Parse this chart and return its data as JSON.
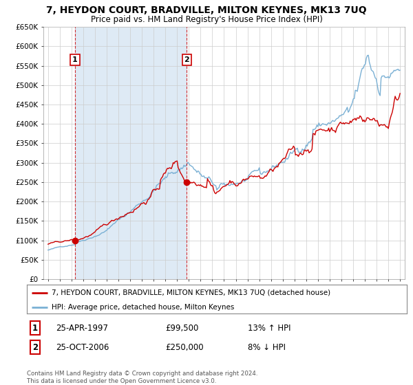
{
  "title": "7, HEYDON COURT, BRADVILLE, MILTON KEYNES, MK13 7UQ",
  "subtitle": "Price paid vs. HM Land Registry's House Price Index (HPI)",
  "legend_line1": "7, HEYDON COURT, BRADVILLE, MILTON KEYNES, MK13 7UQ (detached house)",
  "legend_line2": "HPI: Average price, detached house, Milton Keynes",
  "footer": "Contains HM Land Registry data © Crown copyright and database right 2024.\nThis data is licensed under the Open Government Licence v3.0.",
  "point1_label": "1",
  "point1_date": "25-APR-1997",
  "point1_price": "£99,500",
  "point1_hpi": "13% ↑ HPI",
  "point1_year": 1997.29,
  "point1_value": 99500,
  "point2_label": "2",
  "point2_date": "25-OCT-2006",
  "point2_price": "£250,000",
  "point2_hpi": "8% ↓ HPI",
  "point2_year": 2006.82,
  "point2_value": 250000,
  "ylim": [
    0,
    650000
  ],
  "yticks": [
    0,
    50000,
    100000,
    150000,
    200000,
    250000,
    300000,
    350000,
    400000,
    450000,
    500000,
    550000,
    600000,
    650000
  ],
  "red_color": "#cc0000",
  "blue_color": "#7ab0d4",
  "highlight_color": "#deeaf5",
  "bg_color": "#ffffff",
  "grid_color": "#cccccc",
  "plot_bg_color": "#ffffff",
  "xtick_years": [
    1995,
    1996,
    1997,
    1998,
    1999,
    2000,
    2001,
    2002,
    2003,
    2004,
    2005,
    2006,
    2007,
    2008,
    2009,
    2010,
    2011,
    2012,
    2013,
    2014,
    2015,
    2016,
    2017,
    2018,
    2019,
    2020,
    2021,
    2022,
    2023,
    2024,
    2025
  ]
}
